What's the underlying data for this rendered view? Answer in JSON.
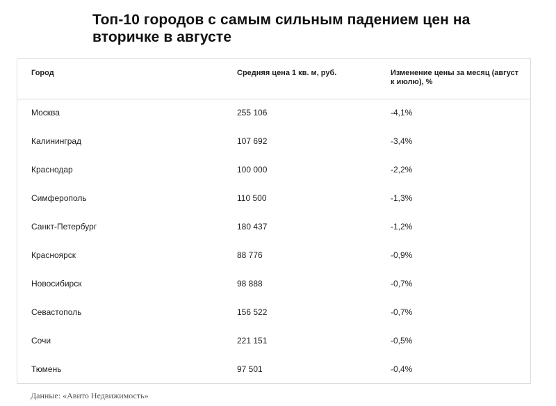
{
  "title": "Топ-10 городов с самым сильным падением цен на вторичке в августе",
  "table": {
    "headers": {
      "city": "Город",
      "price": "Средняя цена 1 кв. м, руб.",
      "change": "Изменение цены за месяц (август к июлю), %"
    },
    "rows": [
      {
        "city": "Москва",
        "price": "255 106",
        "change": "-4,1%"
      },
      {
        "city": "Калининград",
        "price": "107 692",
        "change": "-3,4%"
      },
      {
        "city": "Краснодар",
        "price": "100 000",
        "change": "-2,2%"
      },
      {
        "city": "Симферополь",
        "price": "110 500",
        "change": "-1,3%"
      },
      {
        "city": "Санкт-Петербург",
        "price": "180 437",
        "change": "-1,2%"
      },
      {
        "city": "Красноярск",
        "price": "88 776",
        "change": "-0,9%"
      },
      {
        "city": "Новосибирск",
        "price": "98 888",
        "change": "-0,7%"
      },
      {
        "city": "Севастополь",
        "price": "156 522",
        "change": "-0,7%"
      },
      {
        "city": "Сочи",
        "price": "221 151",
        "change": "-0,5%"
      },
      {
        "city": "Тюмень",
        "price": "97 501",
        "change": "-0,4%"
      }
    ]
  },
  "source": "Данные: «Авито Недвижимость»"
}
